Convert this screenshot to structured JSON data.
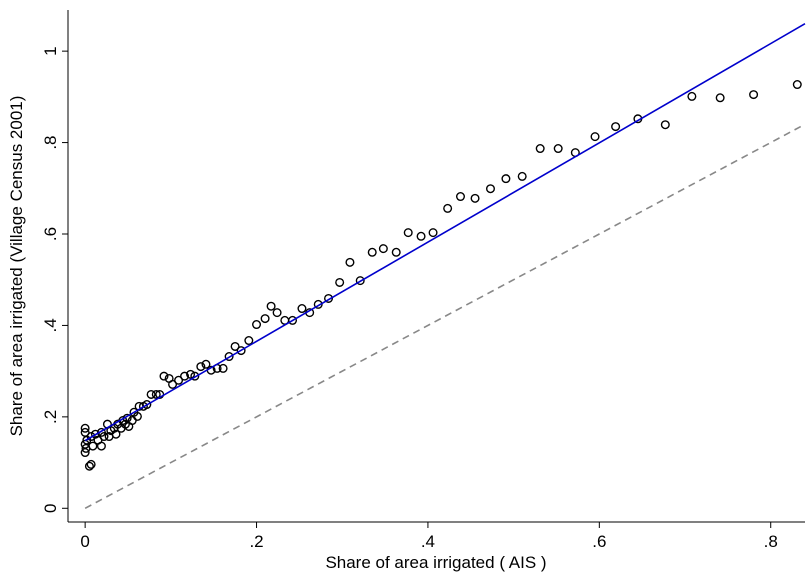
{
  "chart_data": {
    "type": "scatter",
    "x_label": "Share of area irrigated ( AIS )",
    "y_label": "Share of area irrigated (Village Census 2001)",
    "xlim": [
      -0.02,
      0.84
    ],
    "ylim": [
      -0.03,
      1.09
    ],
    "xticks": [
      0,
      {
        "value": 0.2,
        "label": ".2"
      },
      {
        "value": 0.4,
        "label": ".4"
      },
      {
        "value": 0.6,
        "label": ".6"
      },
      {
        "value": 0.8,
        "label": ".8"
      }
    ],
    "yticks": [
      0,
      {
        "value": 0.2,
        "label": ".2"
      },
      {
        "value": 0.4,
        "label": ".4"
      },
      {
        "value": 0.6,
        "label": ".6"
      },
      {
        "value": 0.8,
        "label": ".8"
      },
      1
    ],
    "grid": false,
    "series": [
      {
        "type": "scatter",
        "color": "#000000",
        "x": [
          0,
          0,
          0,
          0.001,
          0,
          0.005,
          0.007,
          0.002,
          0.007,
          0.009,
          0.012,
          0.015,
          0.019,
          0.019,
          0.022,
          0.026,
          0.028,
          0.03,
          0.034,
          0.036,
          0.038,
          0.042,
          0.044,
          0.047,
          0.049,
          0.051,
          0.055,
          0.057,
          0.061,
          0.063,
          0.068,
          0.072,
          0.077,
          0.083,
          0.087,
          0.092,
          0.098,
          0.102,
          0.109,
          0.116,
          0.123,
          0.128,
          0.135,
          0.141,
          0.147,
          0.154,
          0.161,
          0.168,
          0.175,
          0.182,
          0.191,
          0.2,
          0.21,
          0.217,
          0.224,
          0.233,
          0.242,
          0.253,
          0.262,
          0.272,
          0.284,
          0.297,
          0.309,
          0.321,
          0.335,
          0.348,
          0.363,
          0.377,
          0.392,
          0.406,
          0.423,
          0.438,
          0.455,
          0.473,
          0.491,
          0.51,
          0.531,
          0.552,
          0.572,
          0.595,
          0.619,
          0.645,
          0.677,
          0.708,
          0.741,
          0.78,
          0.831
        ],
        "values": [
          0.175,
          0.166,
          0.14,
          0.131,
          0.122,
          0.092,
          0.096,
          0.149,
          0.157,
          0.136,
          0.162,
          0.149,
          0.136,
          0.166,
          0.157,
          0.184,
          0.157,
          0.17,
          0.175,
          0.162,
          0.184,
          0.175,
          0.192,
          0.184,
          0.197,
          0.179,
          0.192,
          0.21,
          0.201,
          0.223,
          0.223,
          0.227,
          0.249,
          0.249,
          0.249,
          0.289,
          0.284,
          0.271,
          0.28,
          0.289,
          0.293,
          0.289,
          0.31,
          0.315,
          0.302,
          0.306,
          0.306,
          0.332,
          0.354,
          0.345,
          0.367,
          0.402,
          0.415,
          0.442,
          0.428,
          0.411,
          0.411,
          0.437,
          0.428,
          0.446,
          0.459,
          0.494,
          0.538,
          0.498,
          0.56,
          0.568,
          0.56,
          0.603,
          0.595,
          0.603,
          0.656,
          0.682,
          0.678,
          0.699,
          0.721,
          0.726,
          0.787,
          0.787,
          0.778,
          0.813,
          0.835,
          0.852,
          0.839,
          0.901,
          0.898,
          0.905,
          0.927
        ]
      },
      {
        "type": "line",
        "color": "#0000cc",
        "x": [
          0,
          0.84
        ],
        "values": [
          0.148,
          1.06
        ]
      },
      {
        "type": "line",
        "color": "#888888",
        "dash": true,
        "x": [
          0,
          0.84
        ],
        "values": [
          0,
          0.84
        ]
      }
    ]
  }
}
